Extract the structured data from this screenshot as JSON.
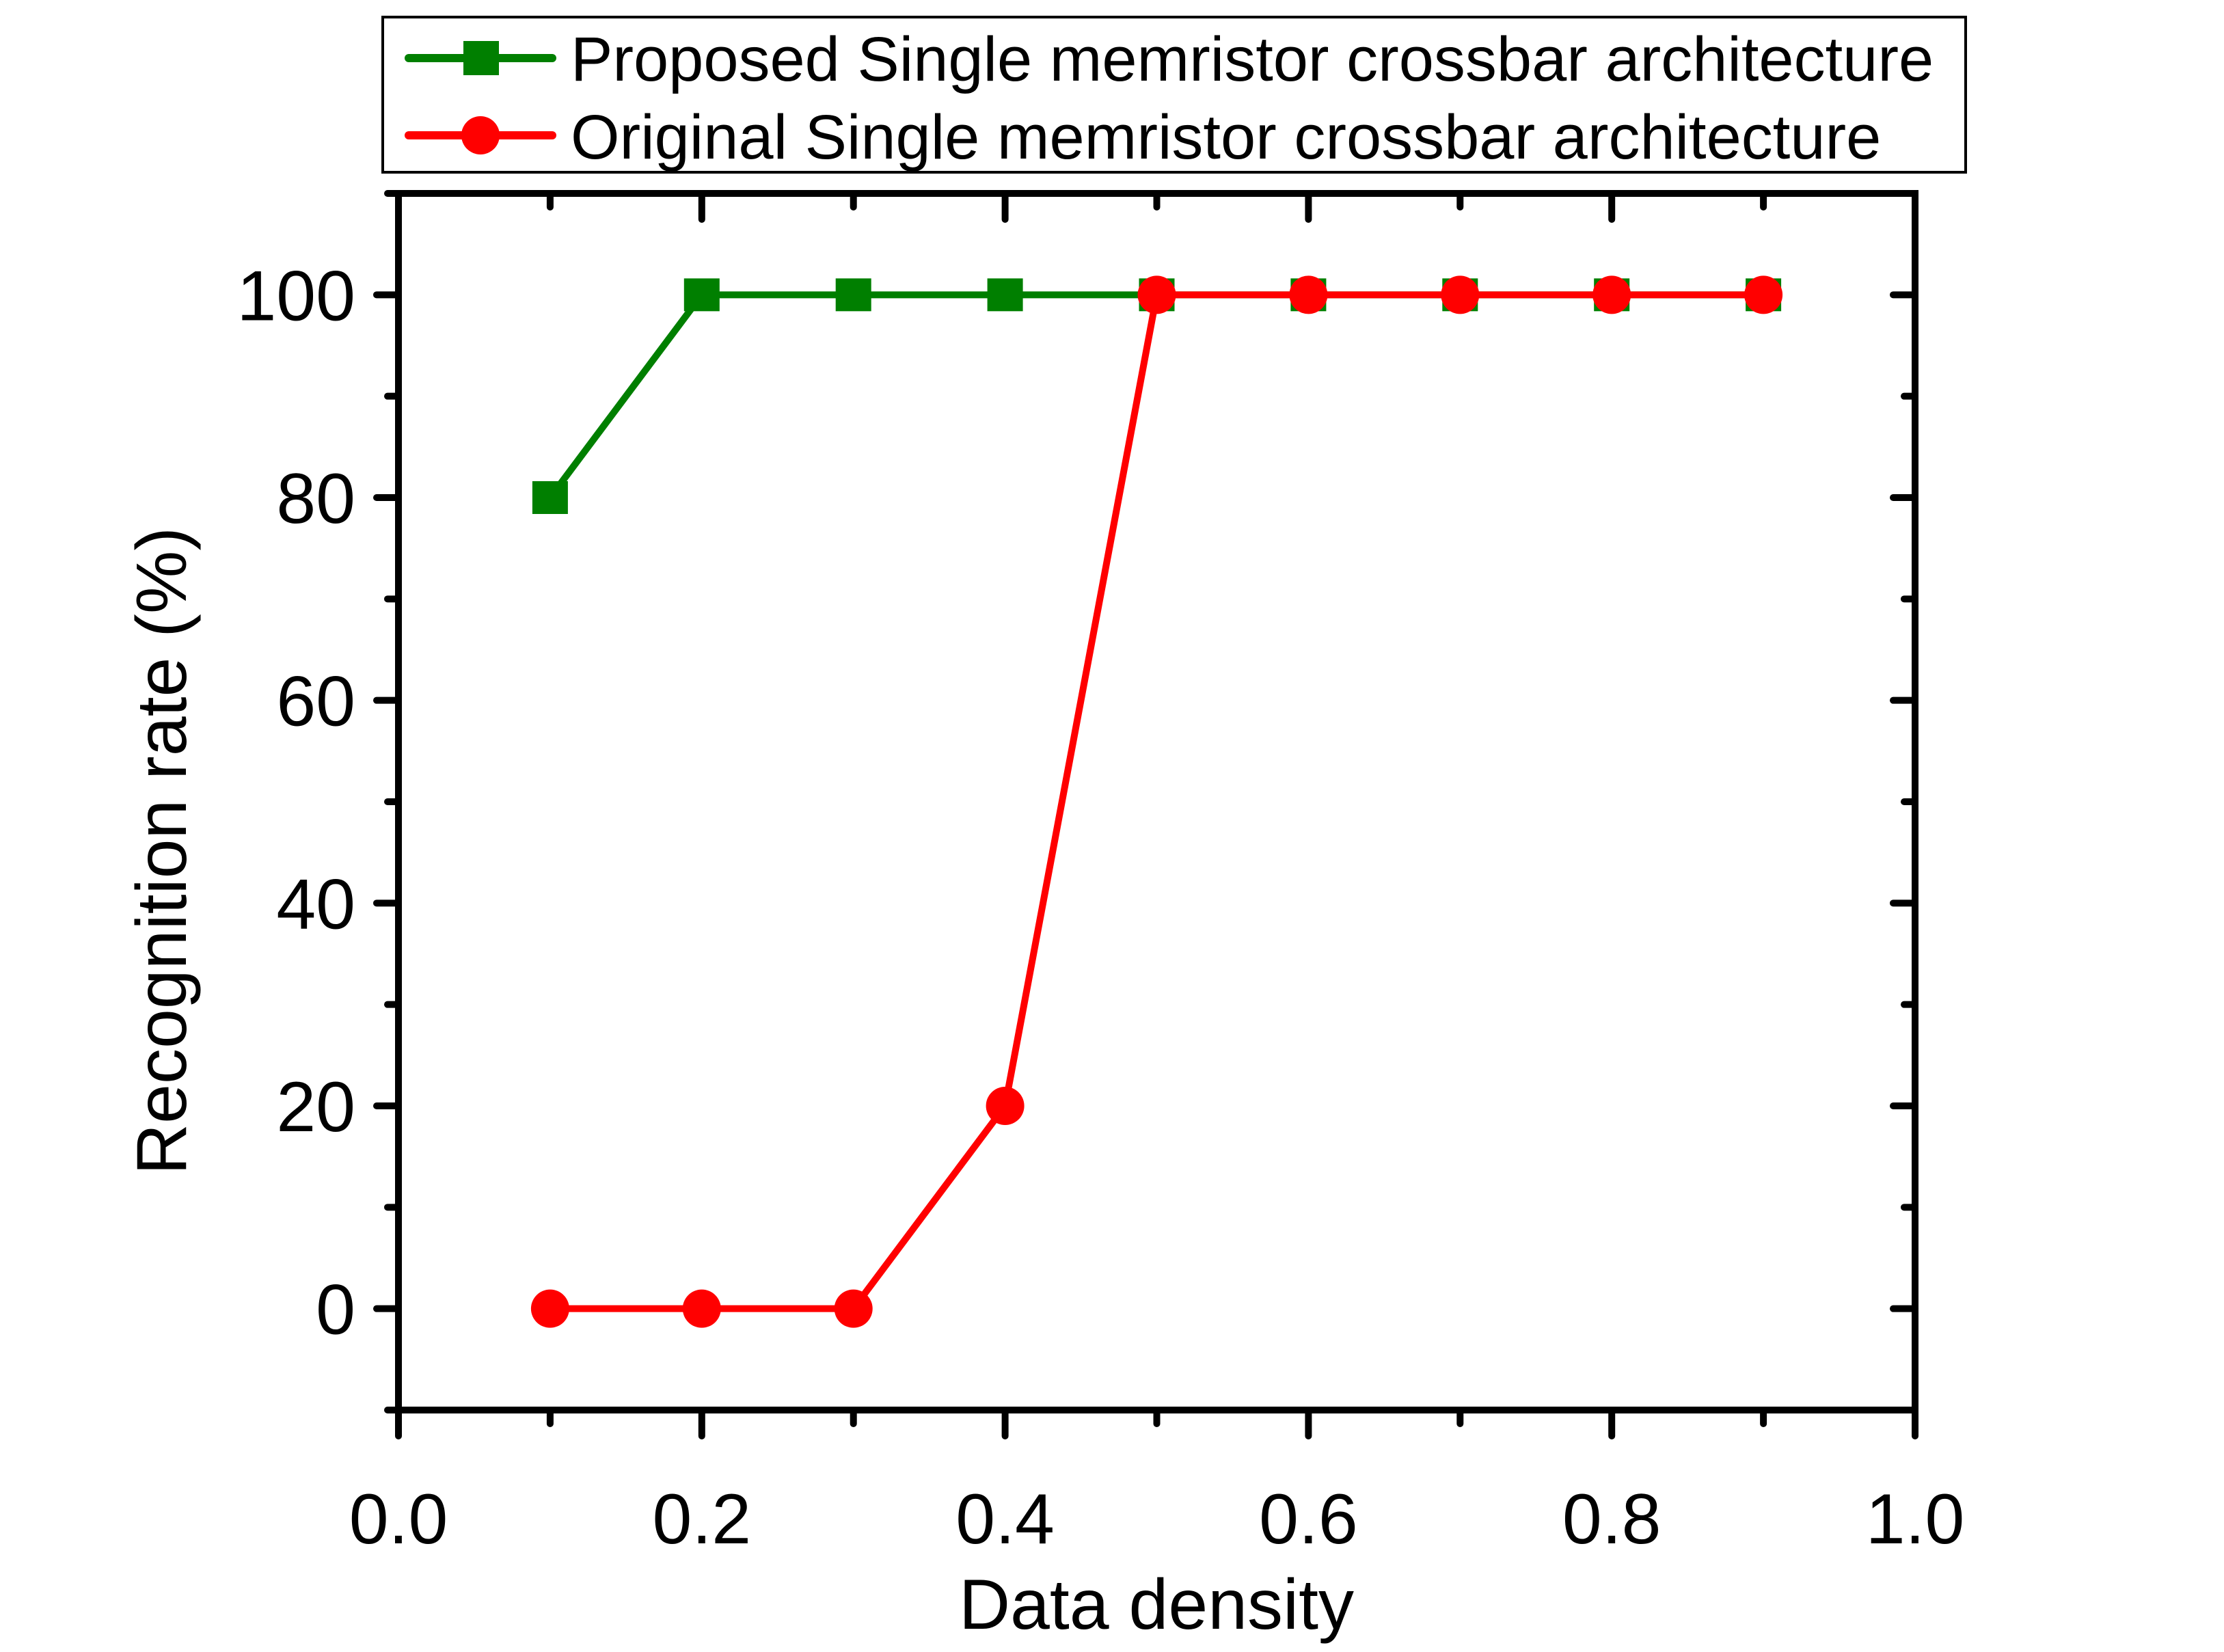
{
  "chart_data": {
    "type": "line",
    "title": "",
    "xlabel": "Data density",
    "ylabel": "Recognition rate (%)",
    "xlim": [
      0.0,
      1.0
    ],
    "ylim": [
      -10,
      110
    ],
    "x_ticks": [
      "0.0",
      "0.2",
      "0.4",
      "0.6",
      "0.8",
      "1.0"
    ],
    "x_tick_values": [
      0.0,
      0.2,
      0.4,
      0.6,
      0.8,
      1.0
    ],
    "x_minor_tick_values": [
      0.1,
      0.3,
      0.5,
      0.7,
      0.9
    ],
    "y_ticks": [
      "0",
      "20",
      "40",
      "60",
      "80",
      "100"
    ],
    "y_tick_values": [
      0,
      20,
      40,
      60,
      80,
      100
    ],
    "y_minor_tick_values": [
      -10,
      10,
      30,
      50,
      70,
      90,
      110
    ],
    "grid": false,
    "legend_position": "top (above plot, boxed)",
    "x": [
      0.1,
      0.2,
      0.3,
      0.4,
      0.5,
      0.6,
      0.7,
      0.8,
      0.9
    ],
    "series": [
      {
        "name": "Proposed Single memristor crossbar architecture",
        "marker": "square",
        "color": "#007F00",
        "values": [
          80,
          100,
          100,
          100,
          100,
          100,
          100,
          100,
          100
        ]
      },
      {
        "name": "Original Single memristor crossbar architecture",
        "marker": "circle",
        "color": "#FF0000",
        "values": [
          0,
          0,
          0,
          20,
          100,
          100,
          100,
          100,
          100
        ]
      }
    ]
  }
}
